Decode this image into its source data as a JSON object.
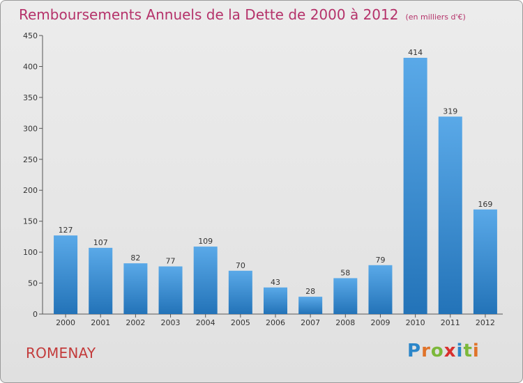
{
  "title": "Remboursements Annuels de la Dette de 2000 à 2012",
  "unit_label": "(en milliers d'€)",
  "commune": "ROMENAY",
  "logo_text": "Proxiti",
  "colors": {
    "bar_top": "#5aa9e8",
    "bar_bottom": "#2373b8",
    "title": "#b5326a",
    "commune": "#c33b3b"
  },
  "chart_data": {
    "type": "bar",
    "title": "Remboursements Annuels de la Dette de 2000 à 2012",
    "xlabel": "",
    "ylabel": "",
    "categories": [
      "2000",
      "2001",
      "2002",
      "2003",
      "2004",
      "2005",
      "2006",
      "2007",
      "2008",
      "2009",
      "2010",
      "2011",
      "2012"
    ],
    "values": [
      127,
      107,
      82,
      77,
      109,
      70,
      43,
      28,
      58,
      79,
      414,
      319,
      169
    ],
    "ylim": [
      0,
      450
    ],
    "yticks": [
      0,
      50,
      100,
      150,
      200,
      250,
      300,
      350,
      400,
      450
    ],
    "grid": false,
    "data_labels": true
  }
}
